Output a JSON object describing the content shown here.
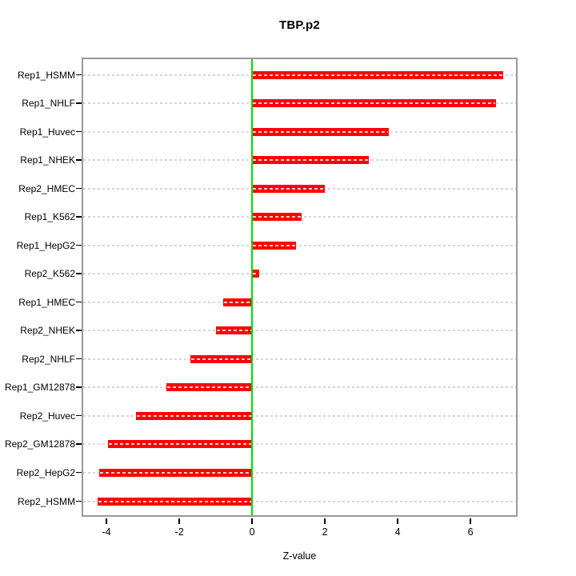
{
  "title": "TBP.p2",
  "x_axis": {
    "label": "Z-value"
  },
  "chart_data": {
    "type": "bar",
    "orientation": "horizontal",
    "title": "TBP.p2",
    "xlabel": "Z-value",
    "ylabel": "",
    "categories": [
      "Rep1_HSMM",
      "Rep1_NHLF",
      "Rep1_Huvec",
      "Rep1_NHEK",
      "Rep2_HMEC",
      "Rep1_K562",
      "Rep1_HepG2",
      "Rep2_K562",
      "Rep1_HMEC",
      "Rep2_NHEK",
      "Rep2_NHLF",
      "Rep1_GM12878",
      "Rep2_Huvec",
      "Rep2_GM12878",
      "Rep2_HepG2",
      "Rep2_HSMM"
    ],
    "values": [
      6.9,
      6.7,
      3.75,
      3.2,
      2.0,
      1.35,
      1.2,
      0.2,
      -0.8,
      -1.0,
      -1.7,
      -2.35,
      -3.2,
      -3.95,
      -4.2,
      -4.25
    ],
    "xticks": [
      -4,
      -2,
      0,
      2,
      4,
      6
    ],
    "xlim": [
      -4.64,
      7.25
    ],
    "grid": "horizontal-dashed",
    "legend_position": "none",
    "colors": {
      "bar": "#ff0000",
      "zero_line": "#00dd00",
      "grid": "#d7d7d7",
      "box_border": "#999999",
      "text": "#000000"
    }
  }
}
